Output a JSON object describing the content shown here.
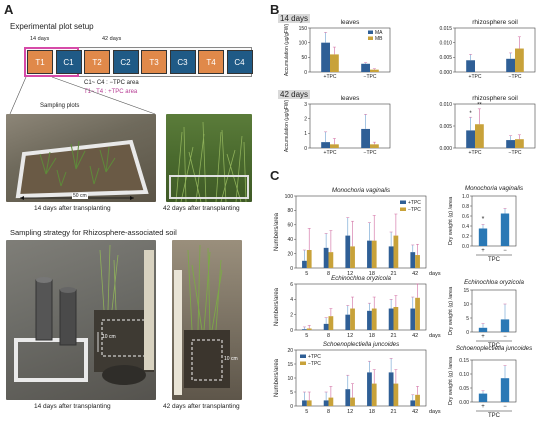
{
  "panels": {
    "a": "A",
    "b": "B",
    "c": "C"
  },
  "panel_a": {
    "title": "Experimental plot setup",
    "day14": "14 days",
    "day42": "42 days",
    "plots": [
      {
        "label": "T1",
        "type": "T"
      },
      {
        "label": "C1",
        "type": "C"
      },
      {
        "label": "T2",
        "type": "T"
      },
      {
        "label": "C2",
        "type": "C"
      },
      {
        "label": "T3",
        "type": "T"
      },
      {
        "label": "C3",
        "type": "C"
      },
      {
        "label": "T4",
        "type": "T"
      },
      {
        "label": "C4",
        "type": "C"
      }
    ],
    "legend_c": "C1~ C4 : −TPC area",
    "legend_t": "T1~ T4 : +TPC area",
    "sampling_plots": "Sampling plots",
    "scale_50cm": "50 cm",
    "photo1_caption": "14 days after transplanting",
    "photo2_caption": "42 days after transplanting",
    "strategy_title": "Sampling strategy for Rhizosphere-associated soil",
    "scale_10cm_a": "10 cm",
    "scale_10cm_b": "10 cm",
    "photo3_caption": "14 days after transplanting",
    "photo4_caption": "42 days after transplanting",
    "colors": {
      "t_fill": "#e0894a",
      "c_fill": "#1f5a86",
      "highlight": "#d64aa8"
    }
  },
  "panel_b": {
    "day14": "14 days",
    "day42": "42 days",
    "ylabel": "Accumulation (μg/gFW)",
    "xticks": [
      "+TPC",
      "−TPC"
    ],
    "legend": [
      "MA",
      "MB"
    ],
    "colors": {
      "MA": "#2f5f96",
      "MB": "#c8a23a"
    }
  },
  "panel_c": {
    "ylabel_count": "Numbers/area",
    "ylabel_dry": "Dry weight (g) /area",
    "xlabel_unit": "days",
    "tpc_label": "TPC",
    "legend": [
      "+TPC",
      "−TPC"
    ],
    "colors": {
      "plus": "#2f5f96",
      "minus": "#c8a23a",
      "single": "#2a78b5"
    }
  },
  "chart_data": [
    {
      "type": "bar",
      "title": "leaves",
      "panel": "B-14-leaves",
      "categories": [
        "+TPC",
        "−TPC"
      ],
      "ylim": [
        0,
        150
      ],
      "yticks": [
        0,
        50,
        100,
        150
      ],
      "series": [
        {
          "name": "MA",
          "values": [
            100,
            28
          ],
          "errors": [
            35,
            4
          ]
        },
        {
          "name": "MB",
          "values": [
            60,
            8
          ],
          "errors": [
            25,
            3
          ]
        }
      ]
    },
    {
      "type": "bar",
      "title": "rhizosphere soil",
      "panel": "B-14-soil",
      "categories": [
        "+TPC",
        "−TPC"
      ],
      "ylim": [
        0,
        0.015
      ],
      "yticks": [
        0.0,
        0.005,
        0.01,
        0.015
      ],
      "series": [
        {
          "name": "MA",
          "values": [
            0.004,
            0.0045
          ],
          "errors": [
            0.002,
            0.002
          ]
        },
        {
          "name": "MB",
          "values": [
            0,
            0.008
          ],
          "errors": [
            0,
            0.004
          ]
        }
      ]
    },
    {
      "type": "bar",
      "title": "leaves",
      "panel": "B-42-leaves",
      "categories": [
        "+TPC",
        "−TPC"
      ],
      "ylim": [
        0,
        3
      ],
      "yticks": [
        0,
        1,
        2,
        3
      ],
      "series": [
        {
          "name": "MA",
          "values": [
            0.4,
            1.3
          ],
          "errors": [
            0.7,
            1.0
          ]
        },
        {
          "name": "MB",
          "values": [
            0.25,
            0.25
          ],
          "errors": [
            0.4,
            0.15
          ]
        }
      ]
    },
    {
      "type": "bar",
      "title": "rhizosphere soil",
      "panel": "B-42-soil",
      "categories": [
        "+TPC",
        "−TPC"
      ],
      "ylim": [
        0,
        0.01
      ],
      "yticks": [
        0.0,
        0.005,
        0.01
      ],
      "annotations": [
        "*",
        "**"
      ],
      "series": [
        {
          "name": "MA",
          "values": [
            0.004,
            0.0018
          ],
          "errors": [
            0.003,
            0.001
          ]
        },
        {
          "name": "MB",
          "values": [
            0.0054,
            0.002
          ],
          "errors": [
            0.0035,
            0.001
          ]
        }
      ]
    },
    {
      "type": "bar",
      "title": "Monochoria vaginalis",
      "panel": "C-count-1",
      "categories": [
        "5",
        "8",
        "12",
        "18",
        "21",
        "42"
      ],
      "ylim": [
        0,
        100
      ],
      "yticks": [
        0,
        20,
        40,
        60,
        80,
        100
      ],
      "series": [
        {
          "name": "+TPC",
          "values": [
            10,
            28,
            45,
            38,
            30,
            22
          ],
          "errors": [
            15,
            20,
            25,
            25,
            20,
            10
          ]
        },
        {
          "name": "−TPC",
          "values": [
            25,
            22,
            30,
            38,
            45,
            18
          ],
          "errors": [
            30,
            30,
            35,
            35,
            30,
            15
          ]
        }
      ]
    },
    {
      "type": "bar",
      "title": "Monochoria vaginalis",
      "panel": "C-dry-1",
      "categories": [
        "+",
        "−"
      ],
      "ylim": [
        0,
        1.0
      ],
      "yticks": [
        0,
        0.2,
        0.4,
        0.6,
        0.8,
        1.0
      ],
      "annotations": [
        "*"
      ],
      "series": [
        {
          "name": "TPC",
          "values": [
            0.35,
            0.65
          ],
          "errors": [
            0.08,
            0.1
          ]
        }
      ]
    },
    {
      "type": "bar",
      "title": "Echinochloa oryzicola",
      "panel": "C-count-2",
      "categories": [
        "5",
        "8",
        "12",
        "18",
        "21",
        "42"
      ],
      "ylim": [
        0,
        6
      ],
      "yticks": [
        0,
        2,
        4,
        6
      ],
      "series": [
        {
          "name": "+TPC",
          "values": [
            0.1,
            0.8,
            2.0,
            2.5,
            2.8,
            2.8
          ],
          "errors": [
            0.3,
            0.8,
            1.2,
            1.0,
            1.2,
            1.5
          ]
        },
        {
          "name": "−TPC",
          "values": [
            0.2,
            1.8,
            2.8,
            2.8,
            3.0,
            4.2
          ],
          "errors": [
            0.4,
            1.0,
            1.5,
            1.5,
            1.5,
            2.0
          ]
        }
      ]
    },
    {
      "type": "bar",
      "title": "Echinochloa oryzicola",
      "panel": "C-dry-2",
      "categories": [
        "+",
        "−"
      ],
      "ylim": [
        0,
        15
      ],
      "yticks": [
        0,
        5,
        10,
        15
      ],
      "series": [
        {
          "name": "TPC",
          "values": [
            1.5,
            4.5
          ],
          "errors": [
            1.5,
            5.5
          ]
        }
      ]
    },
    {
      "type": "bar",
      "title": "Schoenoplectiella juncoides",
      "panel": "C-count-3",
      "categories": [
        "5",
        "8",
        "12",
        "18",
        "21",
        "42"
      ],
      "ylim": [
        0,
        20
      ],
      "yticks": [
        0,
        5,
        10,
        15,
        20
      ],
      "series": [
        {
          "name": "+TPC",
          "values": [
            2,
            2,
            6,
            12,
            12,
            2
          ],
          "errors": [
            3,
            3,
            5,
            4,
            5,
            2
          ]
        },
        {
          "name": "−TPC",
          "values": [
            2,
            3,
            3,
            8,
            8,
            4
          ],
          "errors": [
            3,
            4,
            5,
            5,
            5,
            3
          ]
        }
      ]
    },
    {
      "type": "bar",
      "title": "Schoenoplectiella juncoides",
      "panel": "C-dry-3",
      "categories": [
        "+",
        "−"
      ],
      "ylim": [
        0,
        0.15
      ],
      "yticks": [
        0,
        0.05,
        0.1,
        0.15
      ],
      "series": [
        {
          "name": "TPC",
          "values": [
            0.03,
            0.085
          ],
          "errors": [
            0.01,
            0.045
          ]
        }
      ]
    }
  ]
}
